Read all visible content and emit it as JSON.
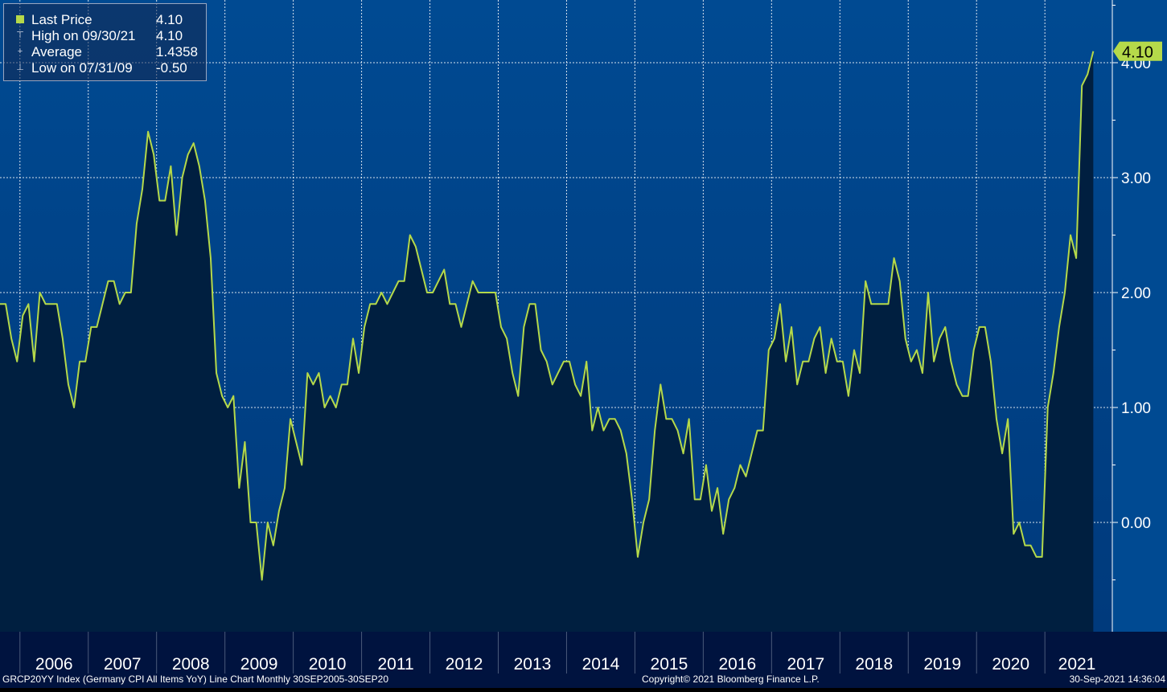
{
  "colors": {
    "background_top": "#004a92",
    "background_bottom": "#003a7c",
    "area_fill": "#001f40",
    "line": "#b5d94a",
    "grid": "#ffffff",
    "axis_bar": "#00133f",
    "last_price_tag": "#b5d94a"
  },
  "legend": {
    "rows": [
      {
        "marker_icon": "green-square-icon",
        "label": "Last Price",
        "value": "4.10"
      },
      {
        "marker_icon": "high-marker-icon",
        "label": "High on 09/30/21",
        "value": "4.10"
      },
      {
        "marker_icon": "average-marker-icon",
        "label": "Average",
        "value": "1.4358"
      },
      {
        "marker_icon": "low-marker-icon",
        "label": "Low on 07/31/09",
        "value": "-0.50"
      }
    ]
  },
  "last_price_tag": "4.10",
  "footer": {
    "description": "GRCP20YY Index (Germany CPI All Items YoY) Line Chart  Monthly 30SEP2005-30SEP20",
    "copyright": "Copyright© 2021 Bloomberg Finance L.P.",
    "timestamp": "30-Sep-2021 14:36:04"
  },
  "chart_data": {
    "type": "area",
    "frequency": "monthly",
    "x_start": "2005-09",
    "x_end": "2021-09",
    "x_tick_labels": [
      "2006",
      "2007",
      "2008",
      "2009",
      "2010",
      "2011",
      "2012",
      "2013",
      "2014",
      "2015",
      "2016",
      "2017",
      "2018",
      "2019",
      "2020",
      "2021"
    ],
    "y_tick_labels": [
      "4.00",
      "3.00",
      "2.00",
      "1.00",
      "0.00"
    ],
    "ylim": [
      -0.95,
      4.5
    ],
    "y_axis_side": "right",
    "grid": true,
    "legend_placement": "top-left",
    "series": [
      {
        "name": "Last Price",
        "values": [
          1.9,
          1.9,
          1.6,
          1.4,
          1.8,
          1.9,
          1.4,
          2.0,
          1.9,
          1.9,
          1.9,
          1.6,
          1.2,
          1.0,
          1.4,
          1.4,
          1.7,
          1.7,
          1.9,
          2.1,
          2.1,
          1.9,
          2.0,
          2.0,
          2.6,
          2.9,
          3.4,
          3.2,
          2.8,
          2.8,
          3.1,
          2.5,
          3.0,
          3.2,
          3.3,
          3.1,
          2.8,
          2.3,
          1.3,
          1.1,
          1.0,
          1.1,
          0.3,
          0.7,
          0.0,
          0.0,
          -0.5,
          0.0,
          -0.2,
          0.1,
          0.3,
          0.9,
          0.7,
          0.5,
          1.3,
          1.2,
          1.3,
          1.0,
          1.1,
          1.0,
          1.2,
          1.2,
          1.6,
          1.3,
          1.7,
          1.9,
          1.9,
          2.0,
          1.9,
          2.0,
          2.1,
          2.1,
          2.5,
          2.4,
          2.2,
          2.0,
          2.0,
          2.1,
          2.2,
          1.9,
          1.9,
          1.7,
          1.9,
          2.1,
          2.0,
          2.0,
          2.0,
          2.0,
          1.7,
          1.6,
          1.3,
          1.1,
          1.7,
          1.9,
          1.9,
          1.5,
          1.4,
          1.2,
          1.3,
          1.4,
          1.4,
          1.2,
          1.1,
          1.4,
          0.8,
          1.0,
          0.8,
          0.9,
          0.9,
          0.8,
          0.6,
          0.2,
          -0.3,
          0.0,
          0.2,
          0.8,
          1.2,
          0.9,
          0.9,
          0.8,
          0.6,
          0.9,
          0.2,
          0.2,
          0.5,
          0.1,
          0.3,
          -0.1,
          0.2,
          0.3,
          0.5,
          0.4,
          0.6,
          0.8,
          0.8,
          1.5,
          1.6,
          1.9,
          1.4,
          1.7,
          1.2,
          1.4,
          1.4,
          1.6,
          1.7,
          1.3,
          1.6,
          1.4,
          1.4,
          1.1,
          1.5,
          1.3,
          2.1,
          1.9,
          1.9,
          1.9,
          1.9,
          2.3,
          2.1,
          1.6,
          1.4,
          1.5,
          1.3,
          2.0,
          1.4,
          1.6,
          1.7,
          1.4,
          1.2,
          1.1,
          1.1,
          1.5,
          1.7,
          1.7,
          1.4,
          0.9,
          0.6,
          0.9,
          -0.1,
          0.0,
          -0.2,
          -0.2,
          -0.3,
          -0.3,
          1.0,
          1.3,
          1.7,
          2.0,
          2.5,
          2.3,
          3.8,
          3.9,
          4.1
        ]
      }
    ]
  }
}
